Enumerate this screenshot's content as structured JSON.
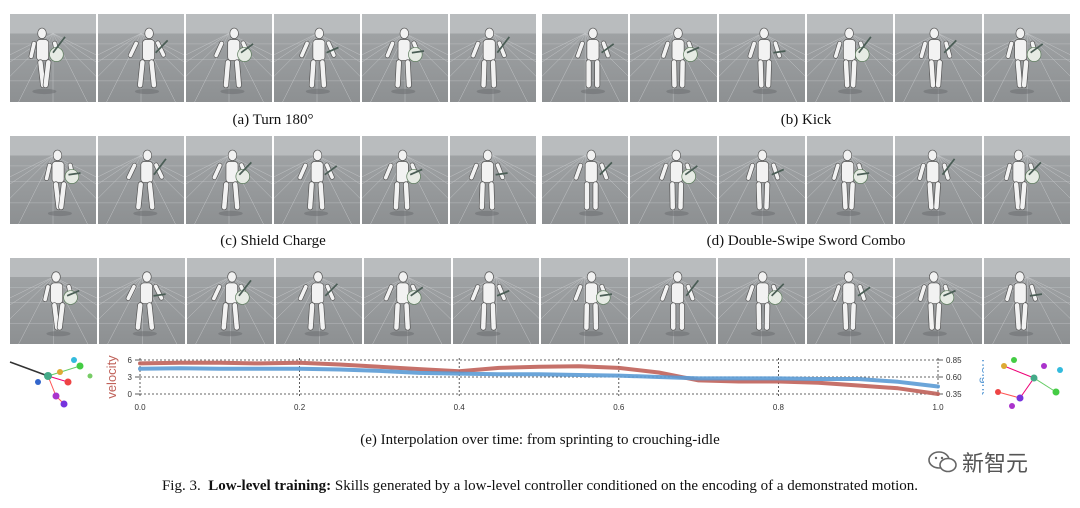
{
  "rows": [
    {
      "id": "row-1",
      "left_panel_frames": 6,
      "right_panel_frames": 6
    },
    {
      "id": "row-2",
      "left_panel_frames": 6,
      "right_panel_frames": 6
    },
    {
      "id": "row-3",
      "frames": 12
    }
  ],
  "captions": {
    "a": "(a) Turn 180°",
    "b": "(b) Kick",
    "c": "(c) Shield Charge",
    "d": "(d) Double-Swipe Sword Combo",
    "e": "(e) Interpolation over time: from sprinting to crouching-idle"
  },
  "figure_caption": {
    "prefix": "Fig. 3.",
    "title": "Low-level training:",
    "body": "Skills generated by a low-level controller conditioned on the encoding of a demonstrated motion."
  },
  "chart_data": {
    "type": "line",
    "x_ticks": [
      "0.0",
      "0.2",
      "0.4",
      "0.6",
      "0.8",
      "1.0"
    ],
    "xlim": [
      0.0,
      1.0
    ],
    "left_axis": {
      "label": "velocity",
      "ticks": [
        "0",
        "3",
        "6"
      ],
      "ylim": [
        0,
        6
      ],
      "color": "#c0625a"
    },
    "right_axis": {
      "label": "height",
      "ticks": [
        "0.35",
        "0.60",
        "0.85"
      ],
      "ylim": [
        0.35,
        0.85
      ],
      "color": "#5b9bd5"
    },
    "series": [
      {
        "name": "velocity",
        "axis": "left",
        "color": "#c0625a",
        "x": [
          0.0,
          0.05,
          0.1,
          0.15,
          0.2,
          0.25,
          0.3,
          0.35,
          0.4,
          0.45,
          0.5,
          0.55,
          0.6,
          0.65,
          0.7,
          0.75,
          0.8,
          0.85,
          0.9,
          0.95,
          1.0
        ],
        "values": [
          5.4,
          5.5,
          5.5,
          5.4,
          5.5,
          5.2,
          4.8,
          4.4,
          4.0,
          4.6,
          4.8,
          4.9,
          4.6,
          3.8,
          2.4,
          2.2,
          2.2,
          2.0,
          1.5,
          1.0,
          0.0
        ]
      },
      {
        "name": "height",
        "axis": "right",
        "color": "#5b9bd5",
        "x": [
          0.0,
          0.05,
          0.1,
          0.15,
          0.2,
          0.25,
          0.3,
          0.35,
          0.4,
          0.45,
          0.5,
          0.55,
          0.6,
          0.65,
          0.7,
          0.75,
          0.8,
          0.85,
          0.9,
          0.95,
          1.0
        ],
        "values": [
          0.72,
          0.73,
          0.72,
          0.72,
          0.72,
          0.71,
          0.69,
          0.66,
          0.65,
          0.64,
          0.64,
          0.63,
          0.62,
          0.6,
          0.58,
          0.58,
          0.58,
          0.57,
          0.57,
          0.53,
          0.46
        ]
      }
    ]
  },
  "watermark": "新智元",
  "colors": {
    "floor": "#9fa2a4",
    "sky": "#b9bcbe",
    "velocity": "#c0625a",
    "height": "#5b9bd5"
  }
}
